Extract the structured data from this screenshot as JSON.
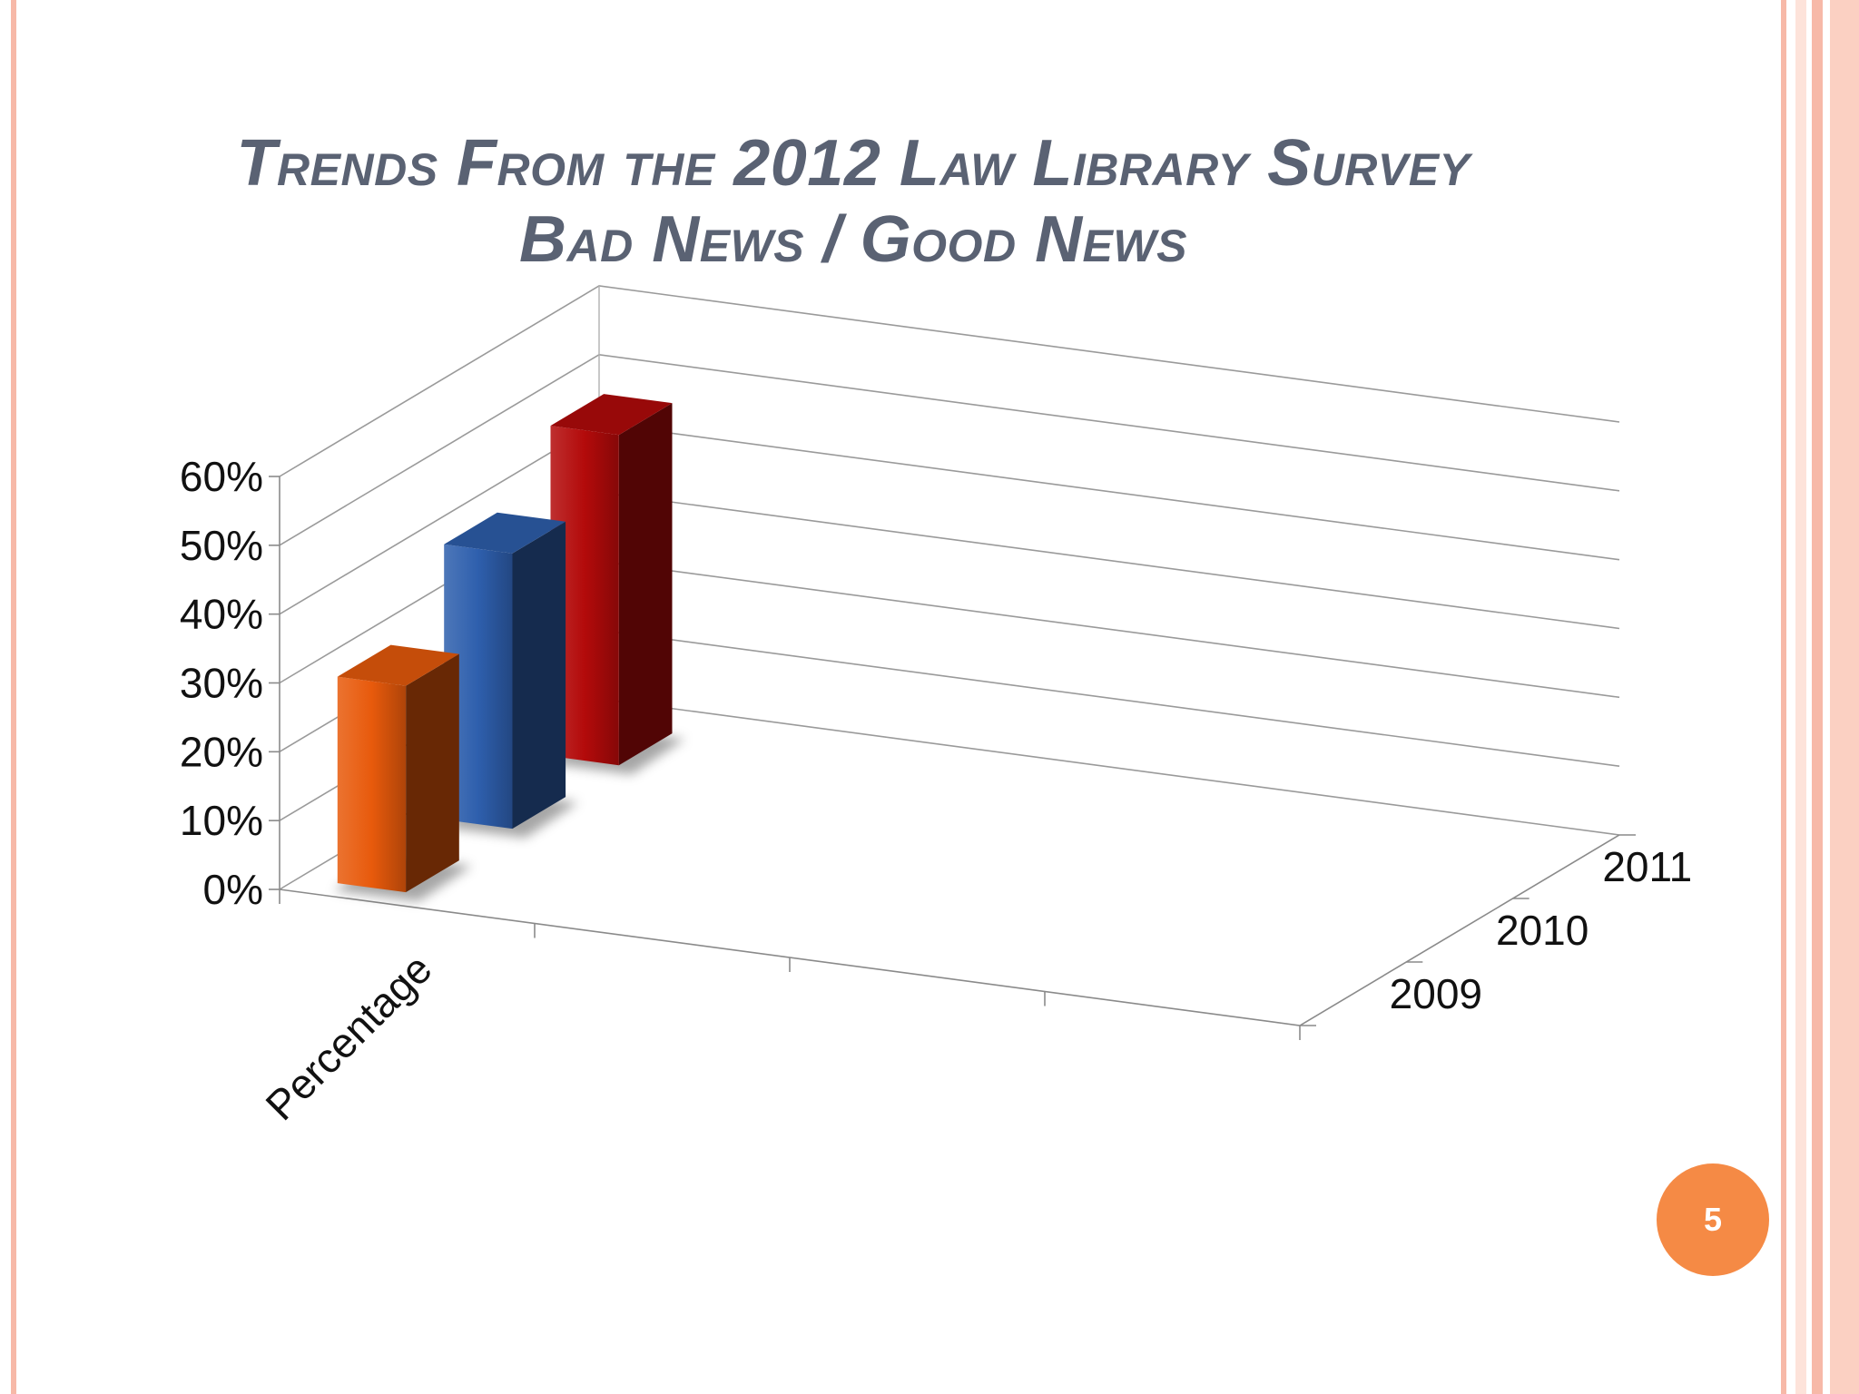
{
  "slide": {
    "title_line1": "Trends From the 2012 Law Library Survey",
    "title_line2": "Bad News / Good News",
    "page_number": "5",
    "colors": {
      "border_stripe": "#f7b9a8",
      "border_stripe_light": "#fde3da",
      "title": "#5a6273",
      "badge": "#f58a45"
    }
  },
  "chart_data": {
    "type": "bar",
    "style": "3d-clustered-depth",
    "categories": [
      "Percentage"
    ],
    "series": [
      {
        "name": "2009",
        "values": [
          30
        ],
        "color": "#e85a0c"
      },
      {
        "name": "2010",
        "values": [
          40
        ],
        "color": "#2e5fad"
      },
      {
        "name": "2011",
        "values": [
          48
        ],
        "color": "#b30a0a"
      }
    ],
    "y_ticks": [
      "0%",
      "10%",
      "20%",
      "30%",
      "40%",
      "50%",
      "60%"
    ],
    "depth_labels": [
      "2009",
      "2010",
      "2011"
    ],
    "ylim": [
      0,
      60
    ],
    "grid": true,
    "title": "",
    "xlabel": "",
    "ylabel": ""
  }
}
